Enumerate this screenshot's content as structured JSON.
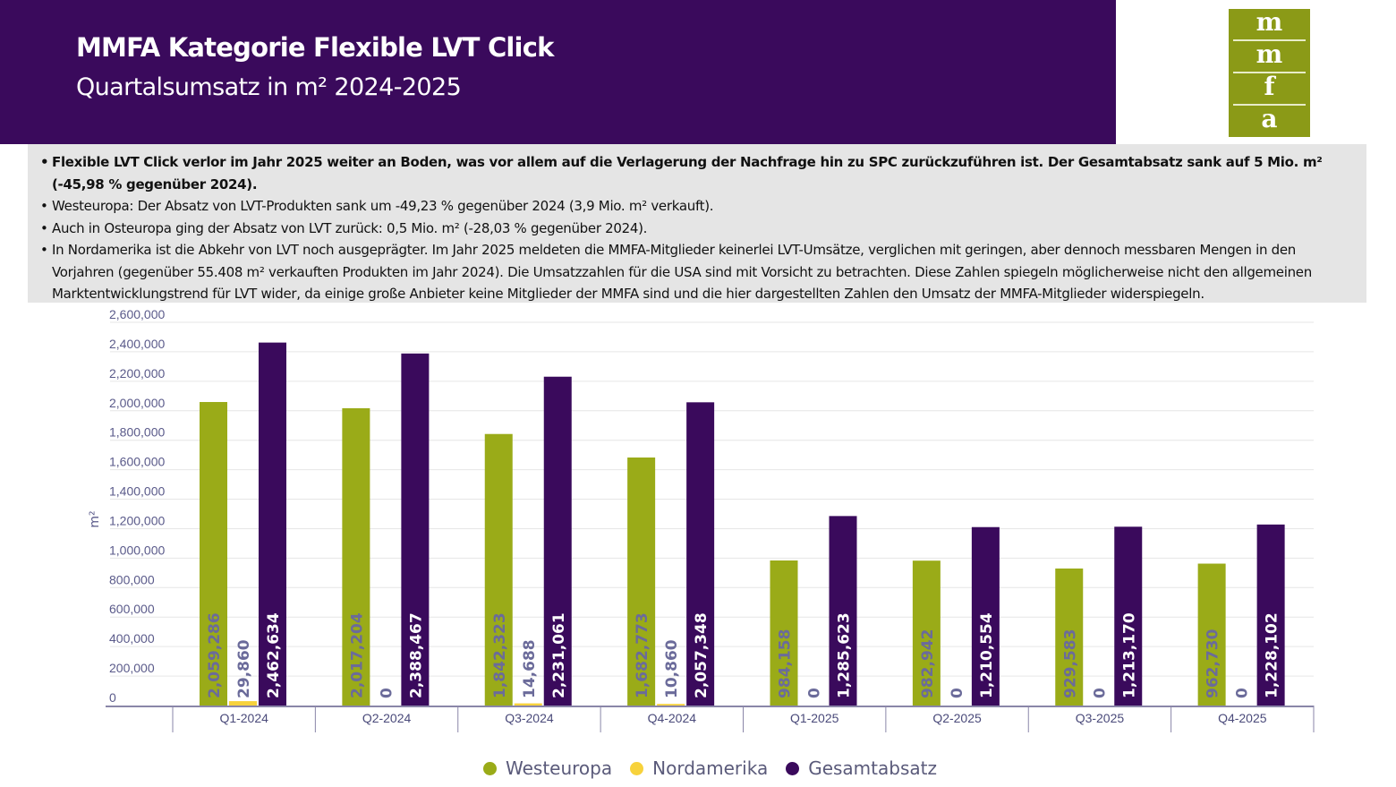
{
  "header": {
    "title": "MMFA Kategorie Flexible LVT Click",
    "subtitle": "Quartalsumsatz in m² 2024-2025"
  },
  "logo": {
    "letters": [
      "m",
      "m",
      "f",
      "a"
    ]
  },
  "notes": [
    "Flexible LVT Click verlor im Jahr 2025 weiter an Boden, was vor allem auf die Verlagerung der Nachfrage hin zu SPC zurückzuführen ist. Der Gesamtabsatz sank auf 5 Mio. m² (-45,98 % gegenüber 2024).",
    "Westeuropa: Der Absatz von LVT-Produkten sank um -49,23 % gegenüber 2024 (3,9 Mio. m² verkauft).",
    "Auch in Osteuropa ging der Absatz von LVT zurück: 0,5 Mio. m² (-28,03 % gegenüber 2024).",
    "In Nordamerika ist die Abkehr von LVT noch ausgeprägter. Im Jahr 2025 meldeten die MMFA-Mitglieder keinerlei LVT-Umsätze, verglichen mit geringen, aber dennoch messbaren Mengen in den Vorjahren (gegenüber 55.408 m² verkauften Produkten im Jahr 2024). Die Umsatzzahlen für die USA sind mit Vorsicht zu betrachten. Diese Zahlen spiegeln möglicherweise nicht den allgemeinen Marktentwicklungstrend für LVT wider, da einige große Anbieter keine Mitglieder der MMFA sind und die hier dargestellten Zahlen den Umsatz der MMFA-Mitglieder widerspiegeln."
  ],
  "chart_data": {
    "type": "bar",
    "ylabel": "m²",
    "ylim": [
      0,
      2600000
    ],
    "ytick_step": 200000,
    "grid": true,
    "legend_position": "bottom",
    "categories": [
      "Q1-2024",
      "Q2-2024",
      "Q3-2024",
      "Q4-2024",
      "Q1-2025",
      "Q2-2025",
      "Q3-2025",
      "Q4-2025"
    ],
    "series": [
      {
        "name": "Westeuropa",
        "color": "#9aab18",
        "label_color": "#6b6b9a",
        "values": [
          2059286,
          2017204,
          1842323,
          1682773,
          984158,
          982942,
          929583,
          962730
        ]
      },
      {
        "name": "Nordamerika",
        "color": "#f7d23c",
        "label_color": "#6b6b9a",
        "values": [
          29860,
          0,
          14688,
          10860,
          0,
          0,
          0,
          0
        ]
      },
      {
        "name": "Gesamtabsatz",
        "color": "#3a0a5c",
        "label_color": "#ffffff",
        "values": [
          2462634,
          2388467,
          2231061,
          2057348,
          1285623,
          1210554,
          1213170,
          1228102
        ]
      }
    ]
  }
}
